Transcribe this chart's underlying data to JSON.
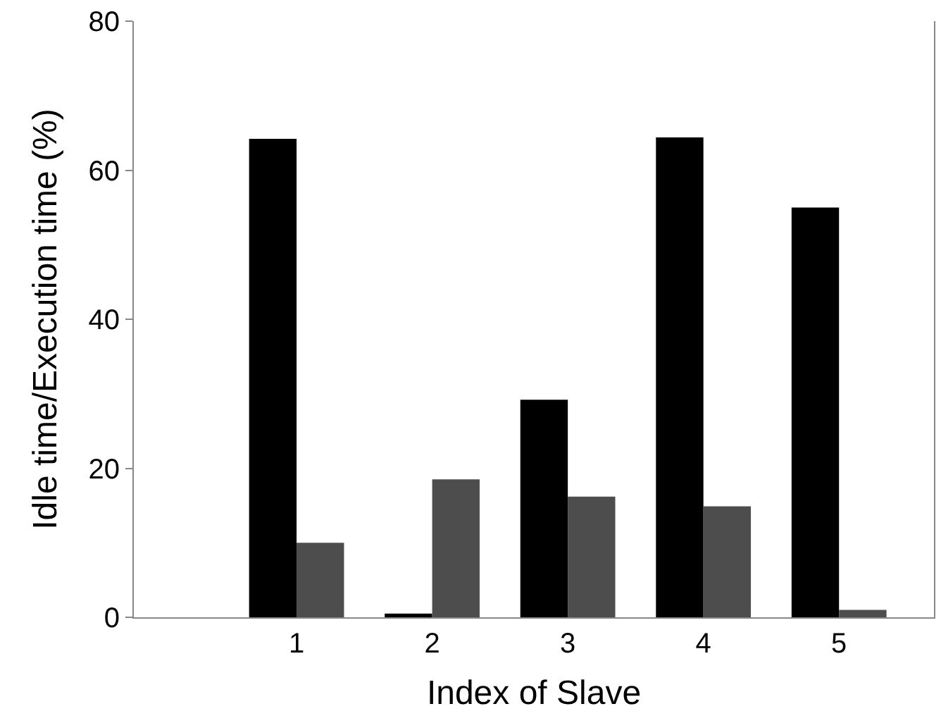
{
  "chart_data": {
    "type": "bar",
    "xlabel": "Index of Slave",
    "ylabel": "Idle time/Execution time (%)",
    "categories": [
      "1",
      "2",
      "3",
      "4",
      "5"
    ],
    "series": [
      {
        "color": "#000000",
        "values": [
          64.2,
          0.5,
          29.2,
          64.4,
          55
        ]
      },
      {
        "color": "#4d4d4d",
        "values": [
          10,
          18.5,
          16.2,
          14.9,
          1
        ]
      }
    ],
    "ylim": [
      0,
      80
    ],
    "yticks": [
      0,
      20,
      40,
      60,
      80
    ]
  }
}
